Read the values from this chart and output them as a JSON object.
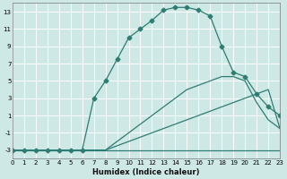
{
  "xlabel": "Humidex (Indice chaleur)",
  "bg_color": "#cde8e5",
  "grid_color": "#ffffff",
  "line_color": "#2e7d72",
  "series": [
    {
      "x": [
        0,
        1,
        2,
        3,
        4,
        5,
        6,
        7,
        8,
        9,
        10,
        11,
        12,
        13,
        14,
        15,
        16,
        17,
        18,
        19,
        20,
        21,
        22,
        23
      ],
      "y": [
        -3,
        -3,
        -3,
        -3,
        -3,
        -3,
        -3,
        -3,
        -3,
        -3,
        -3,
        -3,
        -3,
        -3,
        -3,
        -3,
        -3,
        -3,
        -3,
        -3,
        -3,
        -3,
        -3,
        -3
      ],
      "has_markers": false
    },
    {
      "x": [
        0,
        1,
        2,
        3,
        4,
        5,
        6,
        7,
        8,
        9,
        10,
        11,
        12,
        13,
        14,
        15,
        16,
        17,
        18,
        19,
        20,
        21,
        22,
        23
      ],
      "y": [
        -3,
        -3,
        -3,
        -3,
        -3,
        -3,
        -3,
        -3,
        -3,
        -2.5,
        -2,
        -1.5,
        -1,
        -0.5,
        0,
        0.5,
        1,
        1.5,
        2,
        2.5,
        3,
        3.5,
        4,
        -0.5
      ],
      "has_markers": false
    },
    {
      "x": [
        0,
        1,
        2,
        3,
        4,
        5,
        6,
        7,
        8,
        9,
        10,
        11,
        12,
        13,
        14,
        15,
        16,
        17,
        18,
        19,
        20,
        21,
        22,
        23
      ],
      "y": [
        -3,
        -3,
        -3,
        -3,
        -3,
        -3,
        -3,
        -3,
        -3,
        -2,
        -1,
        0,
        1,
        2,
        3,
        4,
        4.5,
        5,
        5.5,
        5.5,
        5,
        2.5,
        0.5,
        -0.5
      ],
      "has_markers": false
    },
    {
      "x": [
        0,
        1,
        2,
        3,
        4,
        5,
        6,
        7,
        8,
        9,
        10,
        11,
        12,
        13,
        14,
        15,
        16,
        17,
        18,
        19,
        20,
        21,
        22,
        23
      ],
      "y": [
        -3,
        -3,
        -3,
        -3,
        -3,
        -3,
        -3,
        3,
        5,
        7.5,
        10,
        11,
        12,
        13.2,
        13.5,
        13.5,
        13.2,
        12.5,
        9,
        6,
        5.5,
        3.5,
        2,
        1
      ],
      "has_markers": true
    }
  ],
  "xlim": [
    0,
    23
  ],
  "ylim": [
    -4,
    14
  ],
  "yticks": [
    -3,
    -1,
    1,
    3,
    5,
    7,
    9,
    11,
    13
  ],
  "xticks": [
    0,
    1,
    2,
    3,
    4,
    5,
    6,
    7,
    8,
    9,
    10,
    11,
    12,
    13,
    14,
    15,
    16,
    17,
    18,
    19,
    20,
    21,
    22,
    23
  ],
  "xtick_labels": [
    "0",
    "1",
    "2",
    "3",
    "4",
    "5",
    "6",
    "7",
    "8",
    "9",
    "10",
    "11",
    "12",
    "13",
    "14",
    "15",
    "16",
    "17",
    "18",
    "19",
    "20",
    "21",
    "22",
    "23"
  ],
  "marker": "D",
  "markersize": 2.5,
  "linewidth": 0.9,
  "tick_fontsize": 5.0,
  "xlabel_fontsize": 6.0
}
